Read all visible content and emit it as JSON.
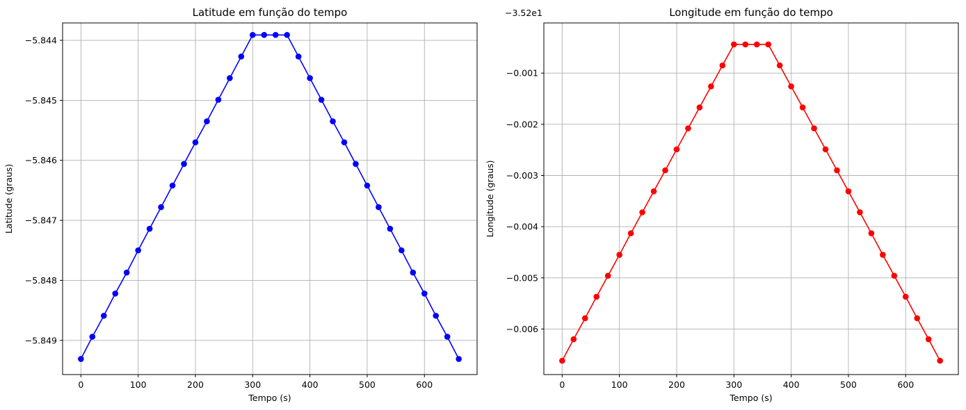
{
  "chart_data": [
    {
      "type": "line",
      "title": "Latitude em função do tempo",
      "xlabel": "Tempo (s)",
      "ylabel": "Latitude (graus)",
      "offset_label": "",
      "xlim": [
        -32,
        692
      ],
      "ylim": [
        -5.84957,
        -5.84371
      ],
      "xticks": [
        0,
        100,
        200,
        300,
        400,
        500,
        600
      ],
      "xtick_labels": [
        "0",
        "100",
        "200",
        "300",
        "400",
        "500",
        "600"
      ],
      "yticks": [
        -5.849,
        -5.848,
        -5.847,
        -5.846,
        -5.845,
        -5.844
      ],
      "ytick_labels": [
        "−5.849",
        "−5.848",
        "−5.847",
        "−5.846",
        "−5.845",
        "−5.844"
      ],
      "grid": true,
      "color": "#0000ff",
      "marker": "circle",
      "x": [
        0,
        20,
        40,
        60,
        80,
        100,
        120,
        140,
        160,
        180,
        200,
        220,
        240,
        260,
        280,
        300,
        320,
        340,
        360,
        380,
        400,
        420,
        440,
        460,
        480,
        500,
        520,
        540,
        560,
        580,
        600,
        620,
        640,
        660
      ],
      "y": [
        -5.84931,
        -5.84894,
        -5.84859,
        -5.84822,
        -5.84787,
        -5.8475,
        -5.84714,
        -5.84678,
        -5.84642,
        -5.84606,
        -5.8457,
        -5.84535,
        -5.84499,
        -5.84463,
        -5.84427,
        -5.84391,
        -5.84391,
        -5.84391,
        -5.84391,
        -5.84427,
        -5.84463,
        -5.84499,
        -5.84535,
        -5.8457,
        -5.84606,
        -5.84642,
        -5.84678,
        -5.84714,
        -5.8475,
        -5.84787,
        -5.84822,
        -5.84859,
        -5.84894,
        -5.84931
      ]
    },
    {
      "type": "line",
      "title": "Longitude em função do tempo",
      "xlabel": "Tempo (s)",
      "ylabel": "Longitude (graus)",
      "offset_label": "−3.52e1",
      "xlim": [
        -32,
        692
      ],
      "ylim": [
        -0.00689,
        -2e-05
      ],
      "xticks": [
        0,
        100,
        200,
        300,
        400,
        500,
        600
      ],
      "xtick_labels": [
        "0",
        "100",
        "200",
        "300",
        "400",
        "500",
        "600"
      ],
      "yticks": [
        -0.006,
        -0.005,
        -0.004,
        -0.003,
        -0.002,
        -0.001
      ],
      "ytick_labels": [
        "−0.006",
        "−0.005",
        "−0.004",
        "−0.003",
        "−0.002",
        "−0.001"
      ],
      "grid": true,
      "color": "#ff0000",
      "marker": "circle",
      "x": [
        0,
        20,
        40,
        60,
        80,
        100,
        120,
        140,
        160,
        180,
        200,
        220,
        240,
        260,
        280,
        300,
        320,
        340,
        360,
        380,
        400,
        420,
        440,
        460,
        480,
        500,
        520,
        540,
        560,
        580,
        600,
        620,
        640,
        660
      ],
      "y": [
        -0.00662,
        -0.0062,
        -0.00579,
        -0.00537,
        -0.00496,
        -0.00455,
        -0.00413,
        -0.00372,
        -0.00331,
        -0.0029,
        -0.00249,
        -0.00208,
        -0.00167,
        -0.00126,
        -0.00085,
        -0.00044,
        -0.00044,
        -0.00044,
        -0.00044,
        -0.00085,
        -0.00126,
        -0.00167,
        -0.00208,
        -0.00249,
        -0.0029,
        -0.00331,
        -0.00372,
        -0.00413,
        -0.00455,
        -0.00496,
        -0.00537,
        -0.00579,
        -0.0062,
        -0.00662
      ]
    }
  ]
}
